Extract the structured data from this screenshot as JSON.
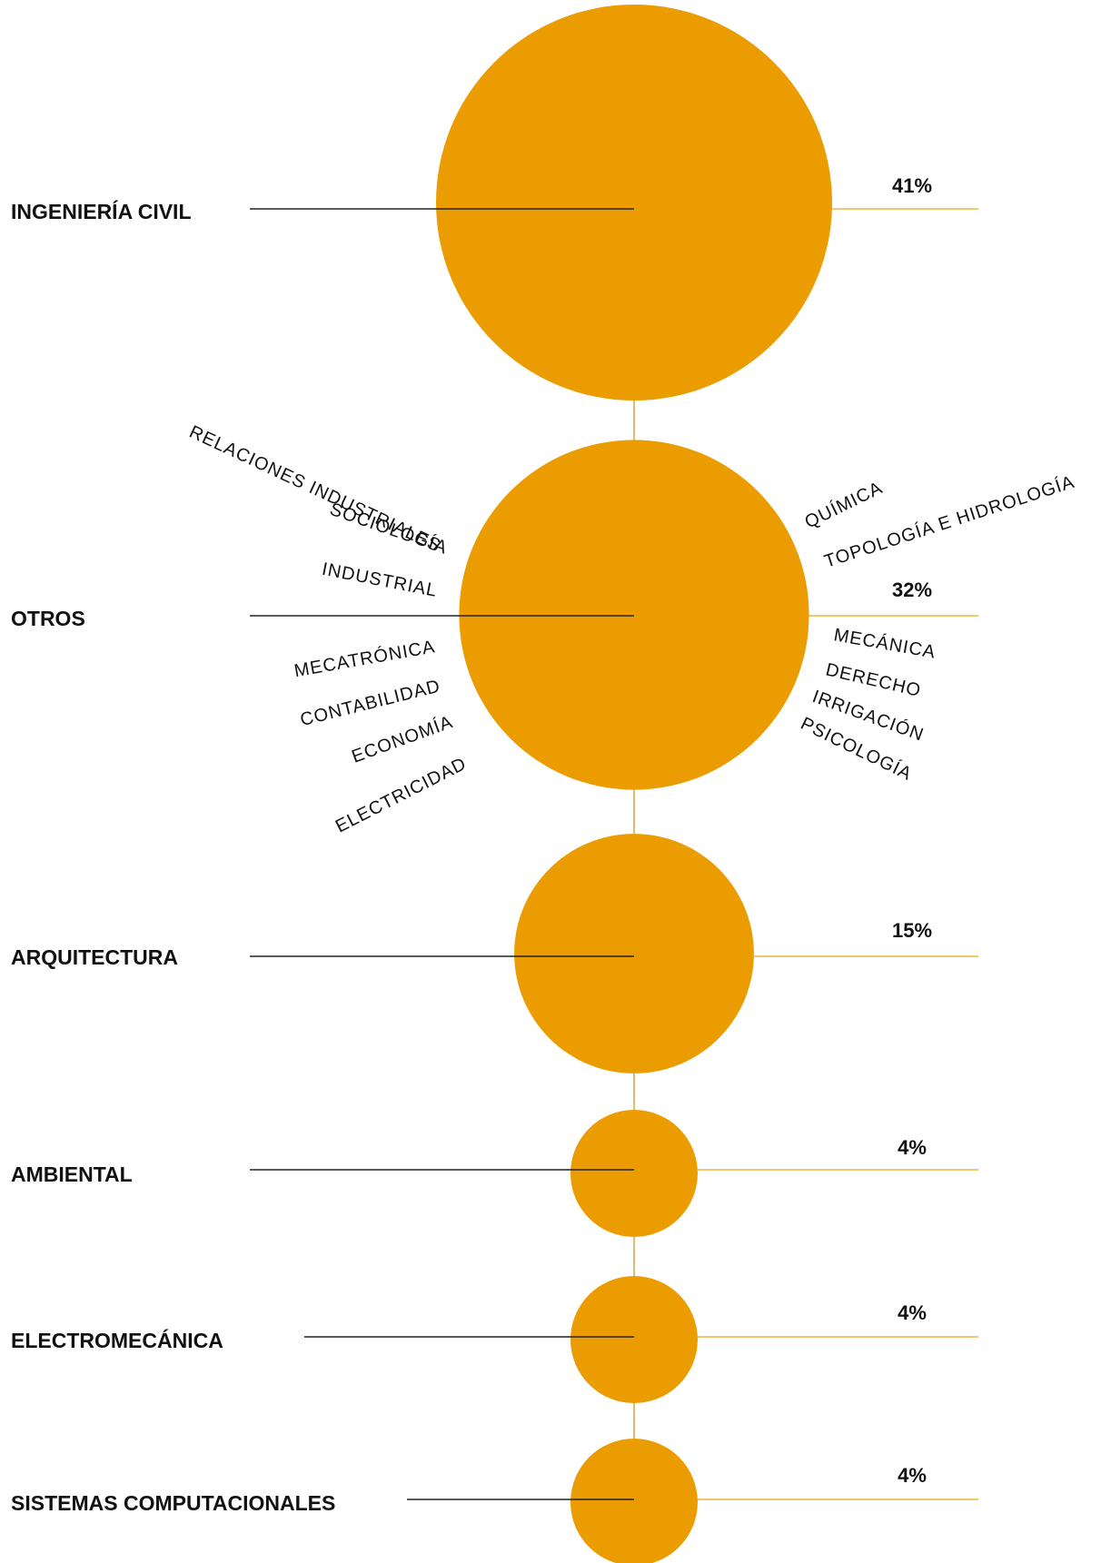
{
  "chart_data": {
    "type": "bubble",
    "colors": {
      "bubble": "#EA9C00",
      "left_line": "#222222",
      "right_line": "#EFB43A",
      "axis": "#D9A53A"
    },
    "categories": [
      {
        "label": "INGENIERÍA CIVIL",
        "value": 41,
        "value_label": "41%"
      },
      {
        "label": "OTROS",
        "value": 32,
        "value_label": "32%"
      },
      {
        "label": "ARQUITECTURA",
        "value": 15,
        "value_label": "15%"
      },
      {
        "label": "AMBIENTAL",
        "value": 4,
        "value_label": "4%"
      },
      {
        "label": "ELECTROMECÁNICA",
        "value": 4,
        "value_label": "4%"
      },
      {
        "label": "SISTEMAS COMPUTACIONALES",
        "value": 4,
        "value_label": "4%"
      }
    ],
    "otros_breakdown": {
      "left": [
        "RELACIONES INDUSTRIALES",
        "SOCIOLOGÍA",
        "INDUSTRIAL",
        "MECATRÓNICA",
        "CONTABILIDAD",
        "ECONOMÍA",
        "ELECTRICIDAD"
      ],
      "right": [
        "QUÍMICA",
        "TOPOLOGÍA E HIDROLOGÍA",
        "MECÁNICA",
        "DERECHO",
        "IRRIGACIÓN",
        "PSICOLOGÍA"
      ]
    }
  }
}
